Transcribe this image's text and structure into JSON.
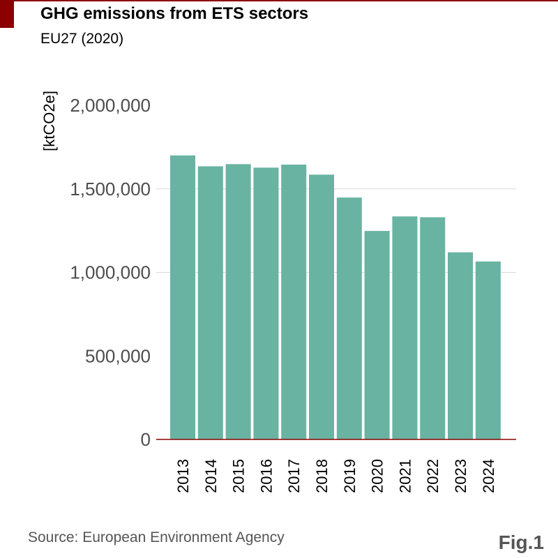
{
  "header": {
    "title": "GHG emissions from ETS sectors",
    "subtitle": "EU27 (2020)"
  },
  "footer": {
    "source": "Source: European Environment Agency",
    "figure_label": "Fig.1"
  },
  "colors": {
    "bar": "#69b3a2",
    "accent": "#8b0000",
    "grid": "#d9d9d9",
    "tick_text": "#4d4d4d"
  },
  "chart_data": {
    "type": "bar",
    "title": "GHG emissions from ETS sectors",
    "subtitle": "EU27 (2020)",
    "xlabel": "",
    "ylabel": "[ktCO2e]",
    "categories": [
      "2013",
      "2014",
      "2015",
      "2016",
      "2017",
      "2018",
      "2019",
      "2020",
      "2021",
      "2022",
      "2023",
      "2024"
    ],
    "values": [
      1700000,
      1635000,
      1648000,
      1627000,
      1645000,
      1585000,
      1448000,
      1248000,
      1335000,
      1330000,
      1120000,
      1065000
    ],
    "ylim": [
      0,
      2000000
    ],
    "yticks": [
      0,
      500000,
      1000000,
      1500000,
      2000000
    ],
    "ytick_labels": [
      "0",
      "500,000",
      "1,000,000",
      "1,500,000",
      "2,000,000"
    ],
    "grid": true,
    "legend": "none"
  }
}
